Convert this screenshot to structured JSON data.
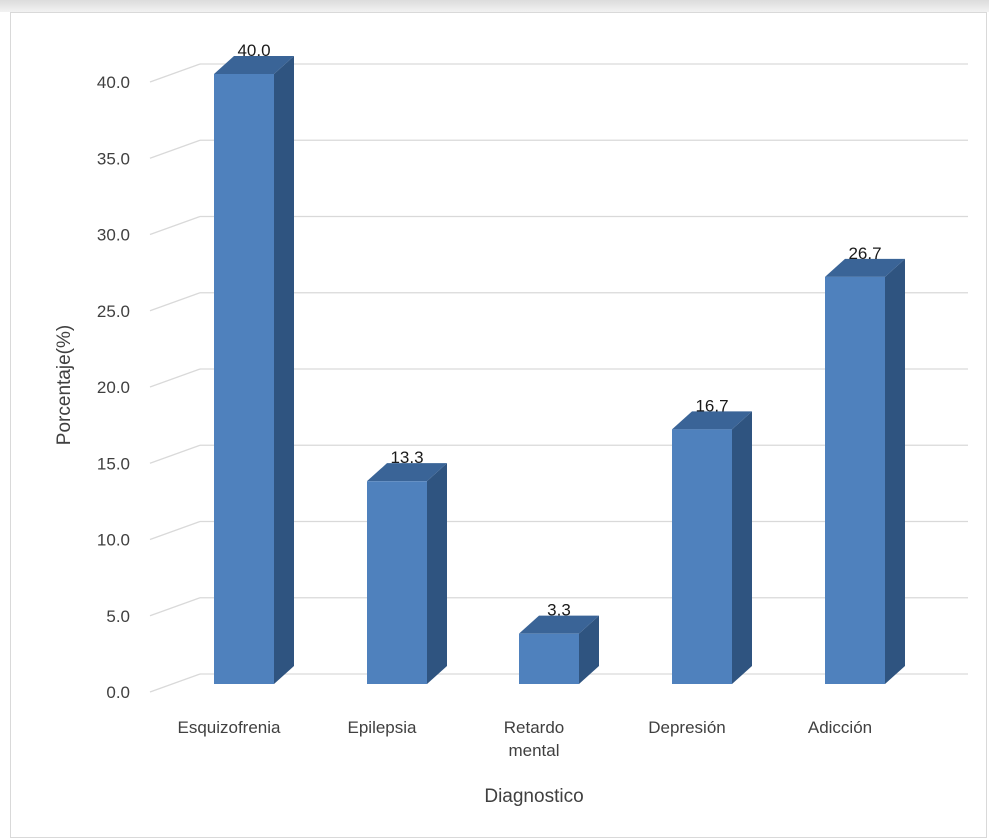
{
  "chart_data": {
    "type": "bar",
    "categories": [
      "Esquizofrenia",
      "Epilepsia",
      "Retardo mental",
      "Depresión",
      "Adicción"
    ],
    "category_lines": [
      [
        "Esquizofrenia"
      ],
      [
        "Epilepsia"
      ],
      [
        "Retardo",
        "mental"
      ],
      [
        "Depresión"
      ],
      [
        "Adicción"
      ]
    ],
    "values": [
      40.0,
      13.3,
      3.3,
      16.7,
      26.7
    ],
    "value_labels": [
      "40.0",
      "13.3",
      "3.3",
      "16.7",
      "26.7"
    ],
    "xlabel": "Diagnostico",
    "ylabel": "Porcentaje(%)",
    "ylim": [
      0,
      40
    ],
    "yticks": [
      "0.0",
      "5.0",
      "10.0",
      "15.0",
      "20.0",
      "25.0",
      "30.0",
      "35.0",
      "40.0"
    ],
    "style": "3d-column",
    "grid": true,
    "colors": {
      "bar_front": "#4f81bd",
      "bar_side": "#2f5480",
      "bar_top": "#3a6497",
      "grid": "#d9d9d9"
    }
  }
}
